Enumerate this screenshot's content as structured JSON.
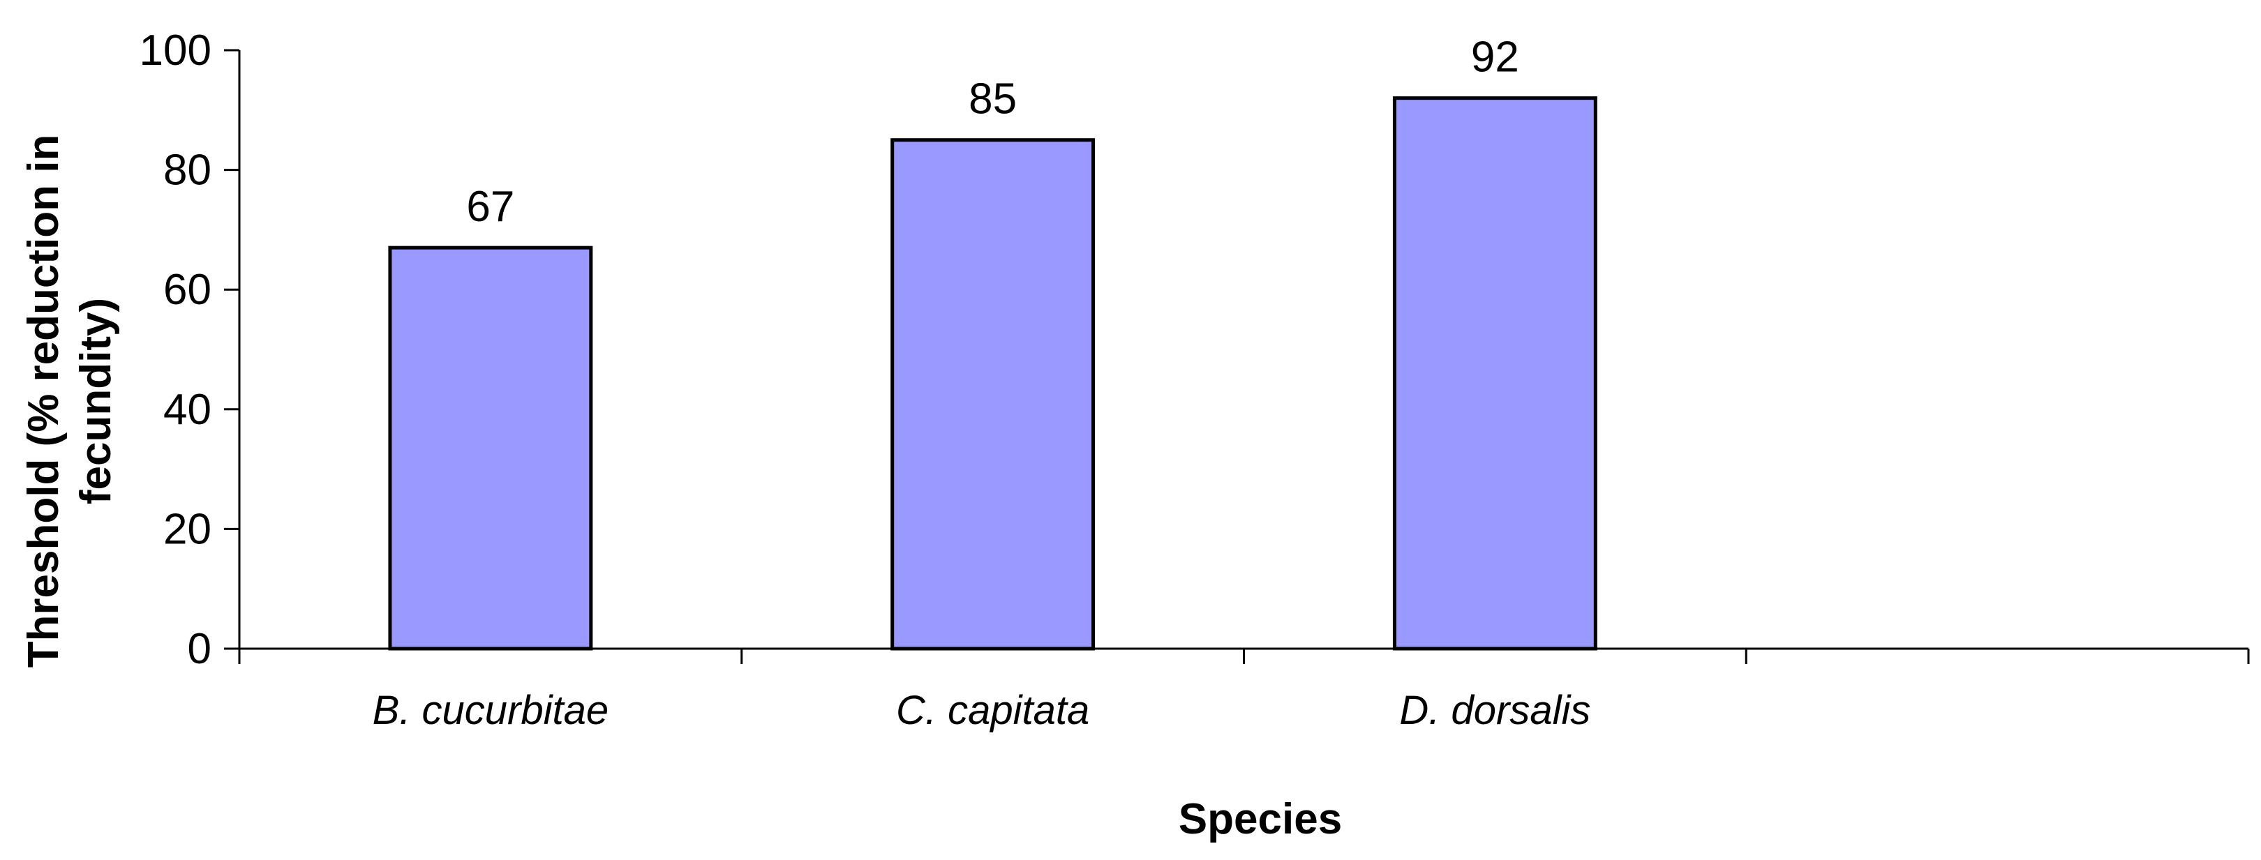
{
  "chart_data": {
    "type": "bar",
    "categories": [
      "B. cucurbitae",
      "C. capitata",
      "D. dorsalis",
      ""
    ],
    "values": [
      67,
      85,
      92,
      null
    ],
    "data_labels": [
      "67",
      "85",
      "92",
      ""
    ],
    "ylabel": "Threshold (% reduction in fecundity)",
    "ylabel_lines": [
      "Threshold (% reduction in",
      "fecundity)"
    ],
    "xlabel": "Species",
    "ylim": [
      0,
      100
    ],
    "yticks": [
      0,
      20,
      40,
      60,
      80,
      100
    ],
    "ytick_labels": [
      "0",
      "20",
      "40",
      "60",
      "80",
      "100"
    ],
    "grid": false,
    "legend": "none",
    "bar_color": "#9999ff",
    "bar_edge_color": "#000000"
  }
}
